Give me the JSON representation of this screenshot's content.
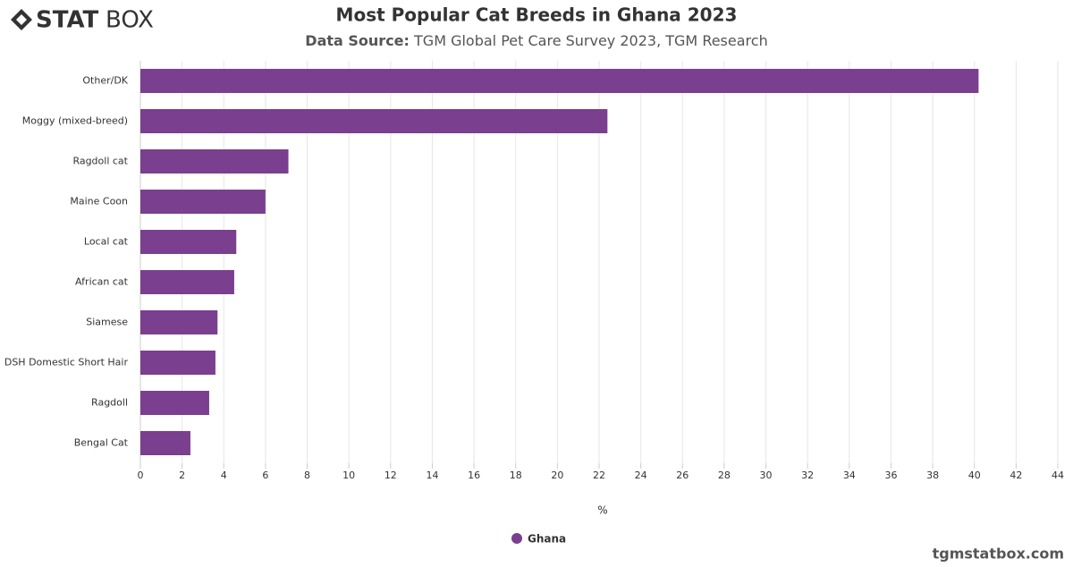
{
  "logo": [
    "STAT",
    "BOX"
  ],
  "footer": "tgmstatbox.com",
  "chart_data": {
    "type": "bar",
    "orientation": "horizontal",
    "title": "Most Popular Cat Breeds in Ghana 2023",
    "source_label": "Data Source:",
    "subtitle": "TGM Global Pet Care Survey 2023, TGM Research",
    "x_label": "%",
    "categories": [
      "Other/DK",
      "Moggy (mixed-breed)",
      "Ragdoll cat",
      "Maine Coon",
      "Local cat",
      "African cat",
      "Siamese",
      "DSH Domestic Short Hair",
      "Ragdoll",
      "Bengal Cat"
    ],
    "series": [
      {
        "name": "Ghana",
        "color": "#7b3f8f",
        "values": [
          40.2,
          22.4,
          7.1,
          6.0,
          4.6,
          4.5,
          3.7,
          3.6,
          3.3,
          2.4
        ]
      }
    ],
    "xlim": [
      0,
      44
    ],
    "xticks": [
      0,
      2,
      4,
      6,
      8,
      10,
      12,
      14,
      16,
      18,
      20,
      22,
      24,
      26,
      28,
      30,
      32,
      34,
      36,
      38,
      40,
      42,
      44
    ],
    "grid": true
  }
}
